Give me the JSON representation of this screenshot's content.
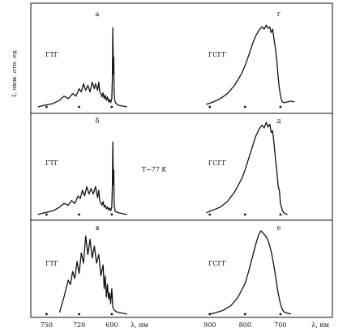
{
  "chart_data": [
    {
      "type": "line",
      "panel": "а",
      "sample": "ГТГ",
      "xlabel": "λ, нм",
      "xlim": [
        760,
        675
      ],
      "xticks": [
        750,
        720,
        690
      ],
      "ylabel": "I, люм. отн. ед.",
      "ylim": [
        0,
        1
      ],
      "x": [
        758,
        752,
        744,
        738,
        734,
        730,
        726,
        723,
        720,
        718,
        716,
        714,
        712,
        710,
        708,
        706,
        705,
        704,
        703,
        702,
        701,
        700,
        699,
        698,
        697,
        696,
        695,
        694,
        693,
        692,
        691,
        690,
        689.5,
        689,
        688.6,
        688.2,
        687.8,
        687.4,
        687,
        686,
        684,
        680,
        676
      ],
      "y": [
        0.0,
        0.02,
        0.04,
        0.08,
        0.13,
        0.1,
        0.16,
        0.13,
        0.22,
        0.18,
        0.28,
        0.2,
        0.26,
        0.18,
        0.3,
        0.22,
        0.28,
        0.24,
        0.2,
        0.3,
        0.18,
        0.16,
        0.12,
        0.17,
        0.1,
        0.14,
        0.08,
        0.12,
        0.06,
        0.09,
        0.05,
        0.1,
        0.35,
        0.96,
        0.4,
        0.6,
        0.15,
        0.1,
        0.06,
        0.04,
        0.02,
        0.01,
        0.0
      ]
    },
    {
      "type": "line",
      "panel": "б",
      "sample": "ГТГ",
      "annotation": "T~77 K",
      "xlabel": "λ, нм",
      "xlim": [
        760,
        675
      ],
      "xticks": [
        750,
        720,
        690
      ],
      "ylabel": "I, люм. отн. ед.",
      "ylim": [
        0,
        1
      ],
      "x": [
        758,
        752,
        744,
        738,
        734,
        730,
        727,
        724,
        721,
        719,
        717,
        715,
        713,
        711,
        709,
        707,
        705,
        704,
        703,
        702,
        701,
        700,
        699,
        698,
        697,
        696,
        695,
        694,
        693,
        692,
        691,
        690,
        689.5,
        689,
        688.6,
        688.2,
        687.8,
        687.4,
        687,
        686,
        684,
        680,
        676
      ],
      "y": [
        0.0,
        0.02,
        0.04,
        0.08,
        0.12,
        0.1,
        0.15,
        0.12,
        0.2,
        0.17,
        0.26,
        0.2,
        0.3,
        0.22,
        0.28,
        0.22,
        0.3,
        0.24,
        0.18,
        0.26,
        0.15,
        0.12,
        0.1,
        0.14,
        0.08,
        0.1,
        0.06,
        0.08,
        0.05,
        0.07,
        0.04,
        0.08,
        0.3,
        0.78,
        0.32,
        0.48,
        0.12,
        0.07,
        0.04,
        0.03,
        0.02,
        0.01,
        0.0
      ]
    },
    {
      "type": "line",
      "panel": "в",
      "sample": "ГТГ",
      "xlabel": "λ, нм",
      "xlim": [
        760,
        675
      ],
      "xticks": [
        750,
        720,
        690
      ],
      "ylabel": "I, люм. отн. ед.",
      "ylim": [
        0,
        1
      ],
      "x": [
        738,
        734,
        730,
        728,
        726,
        724,
        722,
        720,
        718,
        716,
        714,
        712,
        710,
        708,
        706,
        704,
        702,
        700,
        698,
        697,
        696,
        695,
        694,
        693,
        692,
        691,
        690,
        689,
        688,
        686,
        684,
        680,
        676
      ],
      "y": [
        0.02,
        0.2,
        0.4,
        0.35,
        0.5,
        0.42,
        0.62,
        0.48,
        0.72,
        0.6,
        0.92,
        0.7,
        0.88,
        0.66,
        0.8,
        0.6,
        0.7,
        0.45,
        0.58,
        0.3,
        0.45,
        0.2,
        0.35,
        0.18,
        0.25,
        0.12,
        0.3,
        0.08,
        0.05,
        0.03,
        0.02,
        0.01,
        0.0
      ]
    },
    {
      "type": "line",
      "panel": "г",
      "sample": "ГСГГ",
      "xlabel": "λ, нм",
      "xlim": [
        920,
        640
      ],
      "xticks": [
        900,
        800,
        700
      ],
      "ylabel": "I, люм. отн. ед.",
      "ylim": [
        0,
        1
      ],
      "x": [
        910,
        890,
        870,
        850,
        830,
        810,
        800,
        790,
        780,
        770,
        760,
        752,
        746,
        740,
        735,
        730,
        726,
        722,
        718,
        714,
        710,
        706,
        703,
        700,
        697,
        694,
        690,
        680,
        670,
        660
      ],
      "y": [
        0.03,
        0.06,
        0.1,
        0.16,
        0.26,
        0.4,
        0.5,
        0.62,
        0.75,
        0.86,
        0.93,
        0.97,
        0.94,
        0.99,
        0.95,
        0.97,
        0.9,
        0.94,
        0.82,
        0.7,
        0.55,
        0.35,
        0.22,
        0.14,
        0.08,
        0.06,
        0.05,
        0.06,
        0.07,
        0.06
      ]
    },
    {
      "type": "line",
      "panel": "д",
      "sample": "ГСГГ",
      "xlabel": "λ, нм",
      "xlim": [
        920,
        640
      ],
      "xticks": [
        900,
        800,
        700
      ],
      "ylabel": "I, люм. отн. ед.",
      "ylim": [
        0,
        1
      ],
      "x": [
        910,
        890,
        870,
        850,
        830,
        810,
        800,
        790,
        780,
        770,
        760,
        752,
        746,
        740,
        735,
        730,
        726,
        722,
        718,
        714,
        710,
        706,
        703,
        700,
        697,
        694,
        690,
        685,
        680
      ],
      "y": [
        0.02,
        0.05,
        0.08,
        0.14,
        0.24,
        0.38,
        0.48,
        0.6,
        0.72,
        0.84,
        0.92,
        0.96,
        0.93,
        0.99,
        0.94,
        0.97,
        0.88,
        0.9,
        0.76,
        0.6,
        0.46,
        0.3,
        0.26,
        0.12,
        0.08,
        0.04,
        0.02,
        0.01,
        0.0
      ]
    },
    {
      "type": "line",
      "panel": "е",
      "sample": "ГСГГ",
      "xlabel": "λ, нм",
      "xlim": [
        920,
        640
      ],
      "xticks": [
        900,
        800,
        700
      ],
      "ylabel": "I, люм. отн. ед.",
      "ylim": [
        0,
        1
      ],
      "x": [
        900,
        880,
        860,
        840,
        820,
        800,
        790,
        780,
        770,
        762,
        755,
        748,
        742,
        736,
        730,
        724,
        718,
        712,
        706,
        700,
        694,
        688,
        680,
        670
      ],
      "y": [
        0.0,
        0.02,
        0.05,
        0.1,
        0.2,
        0.36,
        0.5,
        0.66,
        0.82,
        0.93,
        0.98,
        0.95,
        0.92,
        0.88,
        0.8,
        0.7,
        0.56,
        0.4,
        0.24,
        0.12,
        0.05,
        0.02,
        0.01,
        0.0
      ]
    }
  ],
  "labels": {
    "ylabel": "I, люм. отн. ед.",
    "temperature": "T~77 K",
    "xlabel": "λ, нм"
  }
}
